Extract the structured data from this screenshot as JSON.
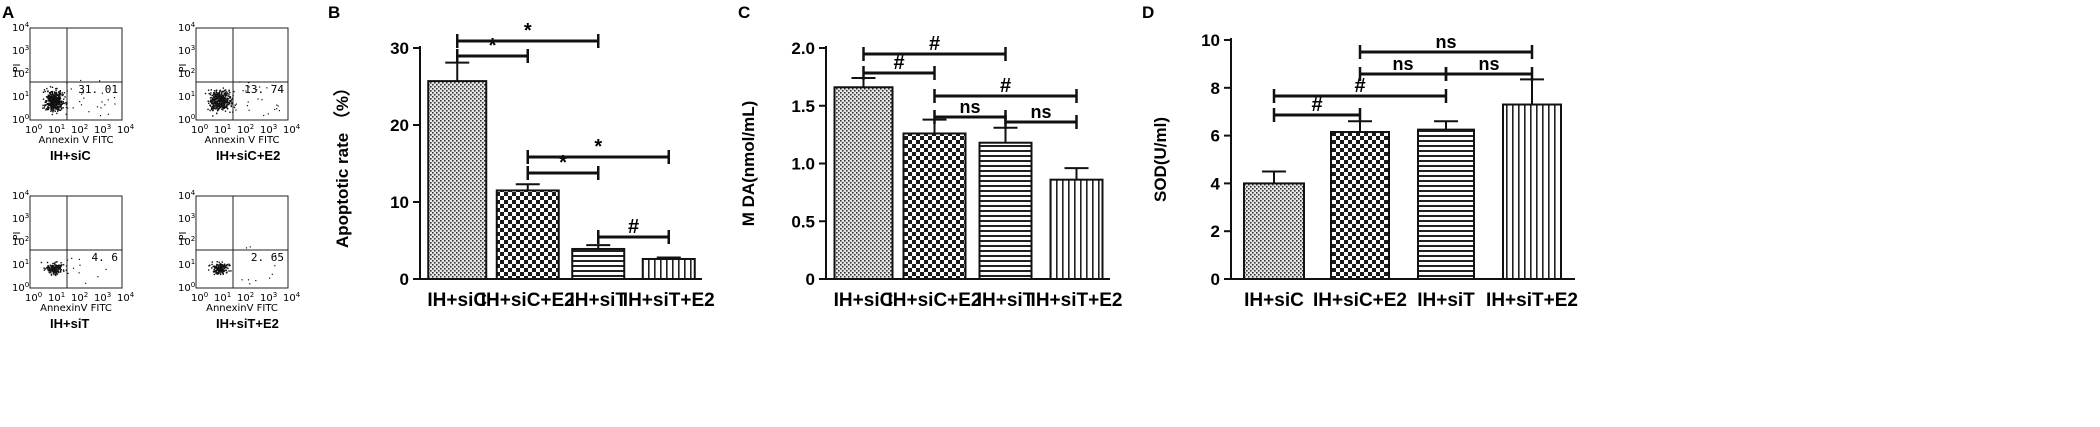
{
  "panels": {
    "a": {
      "letter": "A",
      "plots": [
        {
          "label": "IH+siC",
          "percent": "31. 01",
          "ylabel": "PI",
          "xlabel": "Annexin V FITC",
          "density": "high",
          "seed": 3
        },
        {
          "label": "IH+siC+E2",
          "percent": "13. 74",
          "ylabel": "PI",
          "xlabel": "Annexin V FITC",
          "density": "high-spread",
          "seed": 7
        },
        {
          "label": "IH+siT",
          "percent": "4. 6",
          "ylabel": "PI",
          "xlabel": "AnnexinV FITC",
          "density": "low",
          "seed": 11
        },
        {
          "label": "IH+siT+E2",
          "percent": "2. 65",
          "ylabel": "PI",
          "xlabel": "AnnexinV FITC",
          "density": "low",
          "seed": 19
        }
      ],
      "axis_base": "10",
      "axis_exponents": [
        "0",
        "1",
        "2",
        "3",
        "4"
      ]
    },
    "b": {
      "letter": "B"
    },
    "c": {
      "letter": "C"
    },
    "d": {
      "letter": "D"
    }
  },
  "chart_data": [
    {
      "panel": "B",
      "type": "bar",
      "ylabel": "Apoptotic rate （%）",
      "categories": [
        "IH+siC",
        "IH+siC+E2",
        "IH+siT",
        "IH+siT+E2"
      ],
      "values": [
        25.7,
        11.5,
        3.9,
        2.6
      ],
      "errors": [
        2.4,
        0.8,
        0.5,
        0.2
      ],
      "ylim": [
        0,
        30
      ],
      "yticks": [
        "0",
        "10",
        "20",
        "30"
      ],
      "patterns": [
        "dots",
        "checker",
        "hlines",
        "vlines"
      ],
      "significance": [
        {
          "from": 0,
          "to": 1,
          "label": "*"
        },
        {
          "from": 0,
          "to": 2,
          "label": "*"
        },
        {
          "from": 1,
          "to": 2,
          "label": "*"
        },
        {
          "from": 1,
          "to": 3,
          "label": "*"
        },
        {
          "from": 2,
          "to": 3,
          "label": "#"
        }
      ]
    },
    {
      "panel": "C",
      "type": "bar",
      "ylabel": "M DA(nmol/mL)",
      "categories": [
        "IH+siC",
        "IH+siC+E2",
        "IH+siT",
        "IH+siT+E2"
      ],
      "values": [
        1.66,
        1.26,
        1.18,
        0.86
      ],
      "errors": [
        0.08,
        0.12,
        0.13,
        0.1
      ],
      "ylim": [
        0,
        2.0
      ],
      "yticks": [
        "0",
        "0.5",
        "1.0",
        "1.5",
        "2.0"
      ],
      "patterns": [
        "dots",
        "checker",
        "hlines",
        "vlines"
      ],
      "significance": [
        {
          "from": 0,
          "to": 1,
          "label": "#"
        },
        {
          "from": 0,
          "to": 2,
          "label": "#"
        },
        {
          "from": 1,
          "to": 2,
          "label": "ns"
        },
        {
          "from": 1,
          "to": 3,
          "label": "#"
        },
        {
          "from": 2,
          "to": 3,
          "label": "ns"
        }
      ]
    },
    {
      "panel": "D",
      "type": "bar",
      "ylabel": "SOD(U/ml)",
      "categories": [
        "IH+siC",
        "IH+siC+E2",
        "IH+siT",
        "IH+siT+E2"
      ],
      "values": [
        4.0,
        6.15,
        6.25,
        7.3
      ],
      "errors": [
        0.5,
        0.45,
        0.35,
        1.05
      ],
      "ylim": [
        0,
        10
      ],
      "yticks": [
        "0",
        "2",
        "4",
        "6",
        "8",
        "10"
      ],
      "patterns": [
        "dots",
        "checker",
        "hlines",
        "vlines"
      ],
      "significance": [
        {
          "from": 0,
          "to": 1,
          "label": "#"
        },
        {
          "from": 0,
          "to": 2,
          "label": "#"
        },
        {
          "from": 1,
          "to": 2,
          "label": "ns"
        },
        {
          "from": 1,
          "to": 3,
          "label": "ns"
        },
        {
          "from": 2,
          "to": 3,
          "label": "ns"
        }
      ]
    }
  ]
}
